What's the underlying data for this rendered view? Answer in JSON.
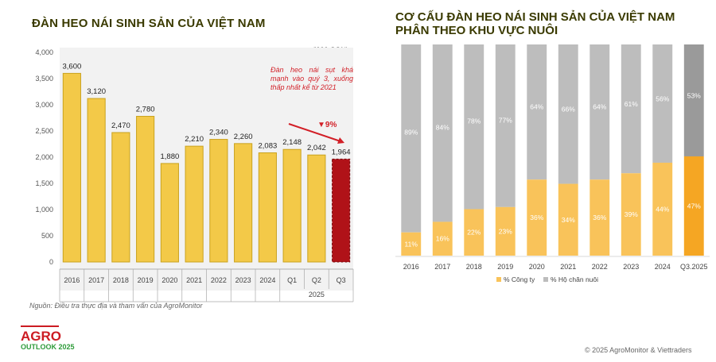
{
  "left_title": "ĐÀN HEO NÁI SINH SẢN CỦA VIỆT NAM",
  "right_title_line1": "CƠ CẤU ĐÀN HEO NÁI SINH SẢN CỦA VIỆT NAM",
  "right_title_line2": "PHÂN THEO KHU VỰC NUÔI",
  "unit_label": "('000 CON)",
  "annotation": "Đàn heo nái sụt khá mạnh vào quý 3, xuống thấp nhất kể từ 2021",
  "annotation_pct": "▼9%",
  "source": "Nguồn: Điều tra thực địa và tham vấn của AgroMonitor",
  "copyright": "© 2025 AgroMonitor & Viettraders",
  "logo": {
    "main": "AGRO",
    "sub": "OUTLOOK 2025"
  },
  "colors": {
    "bar_yellow": "#f3c948",
    "bar_red": "#b01218",
    "annot_red": "#d21f27",
    "company": "#f9c35a",
    "household": "#bdbdbd",
    "q3_company": "#f5a623",
    "q3_household": "#9a9a9a"
  },
  "chart_data": [
    {
      "type": "bar",
      "title": "ĐÀN HEO NÁI SINH SẢN CỦA VIỆT NAM",
      "ylabel": "('000 CON)",
      "ylim": [
        0,
        4000
      ],
      "yticks": [
        "0",
        "500",
        "1,000",
        "1,500",
        "2,000",
        "2,500",
        "3,000",
        "3,500",
        "4,000"
      ],
      "categories": [
        "2016",
        "2017",
        "2018",
        "2019",
        "2020",
        "2021",
        "2022",
        "2023",
        "2024",
        "Q1",
        "Q2",
        "Q3"
      ],
      "group_label": "2025",
      "values": [
        3600,
        3120,
        2470,
        2780,
        1880,
        2210,
        2340,
        2260,
        2083,
        2148,
        2042,
        1964
      ],
      "value_labels": [
        "3,600",
        "3,120",
        "2,470",
        "2,780",
        "1,880",
        "2,210",
        "2,340",
        "2,260",
        "2,083",
        "2,148",
        "2,042",
        "1,964"
      ],
      "highlight": "Q3"
    },
    {
      "type": "bar",
      "stacked": true,
      "title": "CƠ CẤU ĐÀN HEO NÁI SINH SẢN CỦA VIỆT NAM PHÂN THEO KHU VỰC NUÔI",
      "ylim": [
        0,
        100
      ],
      "categories": [
        "2016",
        "2017",
        "2018",
        "2019",
        "2020",
        "2021",
        "2022",
        "2023",
        "2024",
        "Q3.2025"
      ],
      "series": [
        {
          "name": "% Công ty",
          "values": [
            11,
            16,
            22,
            23,
            36,
            34,
            36,
            39,
            44,
            47
          ]
        },
        {
          "name": "% Hộ chăn nuôi",
          "values": [
            89,
            84,
            78,
            77,
            64,
            66,
            64,
            61,
            56,
            53
          ]
        }
      ],
      "legend": [
        "% Công ty",
        "% Hộ chăn nuôi"
      ]
    }
  ]
}
